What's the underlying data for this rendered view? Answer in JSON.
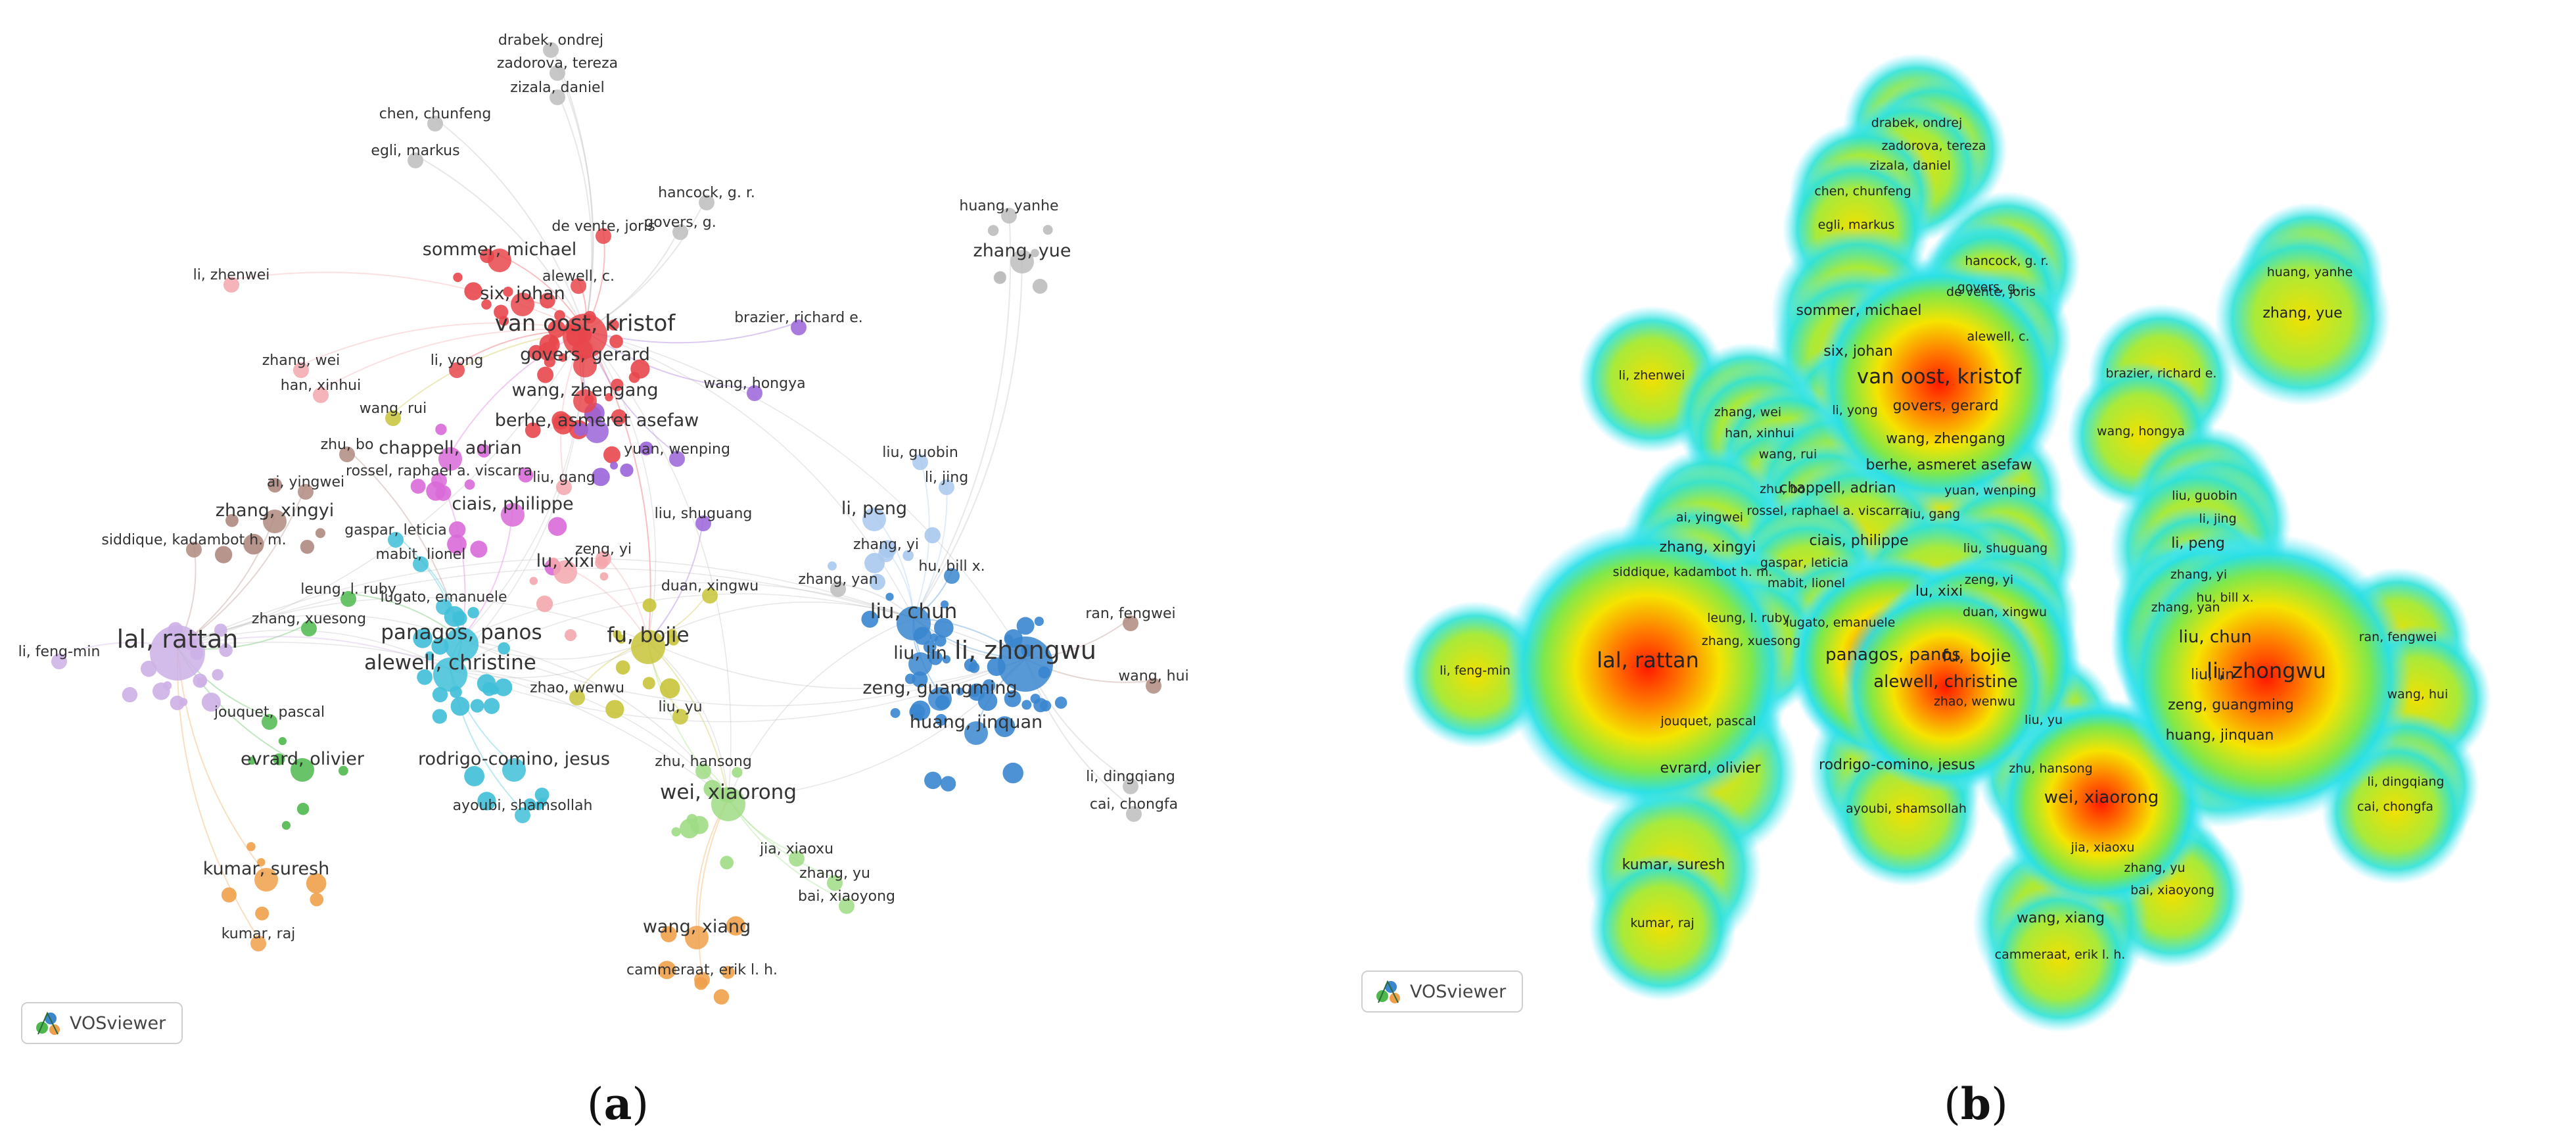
{
  "panels": {
    "a": {
      "caption_open": "(",
      "caption_letter": "a",
      "caption_close": ")"
    },
    "b": {
      "caption_open": "(",
      "caption_letter": "b",
      "caption_close": ")"
    }
  },
  "badge": {
    "label": "VOSviewer"
  },
  "colors": {
    "red": "#e8474c",
    "pink": "#f3a7ad",
    "blue": "#3a86cf",
    "lightblue": "#a9c8ee",
    "cyan": "#3fbfd8",
    "green": "#4fb84d",
    "lightgreen": "#9fdc85",
    "olive": "#c8c43a",
    "purple": "#9b64d9",
    "magenta": "#d96ad8",
    "lavender": "#cdb0e6",
    "orange": "#f0a04a",
    "brown": "#b08a80",
    "gray": "#bdbdbd",
    "yellowgreen": "#c9d863"
  },
  "nodes": [
    {
      "label": "drabek, ondrej",
      "c": "gray",
      "s": 1
    },
    {
      "label": "zadorova, tereza",
      "c": "gray",
      "s": 1
    },
    {
      "label": "zizala, daniel",
      "c": "gray",
      "s": 1
    },
    {
      "label": "chen, chunfeng",
      "c": "gray",
      "s": 1
    },
    {
      "label": "egli, markus",
      "c": "gray",
      "s": 1
    },
    {
      "label": "hancock, g. r.",
      "c": "gray",
      "s": 1
    },
    {
      "label": "govers, g.",
      "c": "gray",
      "s": 1
    },
    {
      "label": "de vente, joris",
      "c": "red",
      "s": 1
    },
    {
      "label": "sommer, michael",
      "c": "red",
      "s": 2
    },
    {
      "label": "alewell, c.",
      "c": "red",
      "s": 1
    },
    {
      "label": "six, johan",
      "c": "red",
      "s": 2
    },
    {
      "label": "van oost, kristof",
      "c": "red",
      "s": 4
    },
    {
      "label": "li, yong",
      "c": "red",
      "s": 1
    },
    {
      "label": "govers, gerard",
      "c": "red",
      "s": 2
    },
    {
      "label": "wang, zhengang",
      "c": "red",
      "s": 2
    },
    {
      "label": "huang, yanhe",
      "c": "gray",
      "s": 1
    },
    {
      "label": "zhang, yue",
      "c": "gray",
      "s": 2
    },
    {
      "label": "li, zhenwei",
      "c": "pink",
      "s": 1
    },
    {
      "label": "zhang, wei",
      "c": "pink",
      "s": 1
    },
    {
      "label": "han, xinhui",
      "c": "pink",
      "s": 1
    },
    {
      "label": "brazier, richard e.",
      "c": "purple",
      "s": 1
    },
    {
      "label": "wang, hongya",
      "c": "purple",
      "s": 1
    },
    {
      "label": "wang, rui",
      "c": "olive",
      "s": 1
    },
    {
      "label": "berhe, asmeret asefaw",
      "c": "purple",
      "s": 2
    },
    {
      "label": "yuan, wenping",
      "c": "purple",
      "s": 1
    },
    {
      "label": "zhu, bo",
      "c": "brown",
      "s": 1
    },
    {
      "label": "chappell, adrian",
      "c": "magenta",
      "s": 2
    },
    {
      "label": "rossel, raphael a. viscarra",
      "c": "magenta",
      "s": 1
    },
    {
      "label": "liu, gang",
      "c": "pink",
      "s": 1
    },
    {
      "label": "ai, yingwei",
      "c": "brown",
      "s": 1
    },
    {
      "label": "ciais, philippe",
      "c": "magenta",
      "s": 2
    },
    {
      "label": "zhang, xingyi",
      "c": "brown",
      "s": 2
    },
    {
      "label": "gaspar, leticia",
      "c": "cyan",
      "s": 1
    },
    {
      "label": "liu, shuguang",
      "c": "purple",
      "s": 1
    },
    {
      "label": "siddique, kadambot h. m.",
      "c": "brown",
      "s": 1
    },
    {
      "label": "mabit, lionel",
      "c": "cyan",
      "s": 1
    },
    {
      "label": "zeng, yi",
      "c": "pink",
      "s": 1
    },
    {
      "label": "lu, xixi",
      "c": "pink",
      "s": 2
    },
    {
      "label": "duan, xingwu",
      "c": "olive",
      "s": 1
    },
    {
      "label": "leung, l. ruby",
      "c": "green",
      "s": 1
    },
    {
      "label": "lugato, emanuele",
      "c": "cyan",
      "s": 1
    },
    {
      "label": "zhang, xuesong",
      "c": "green",
      "s": 1
    },
    {
      "label": "lal, rattan",
      "c": "lavender",
      "s": 5
    },
    {
      "label": "li, feng-min",
      "c": "lavender",
      "s": 1
    },
    {
      "label": "panagos, panos",
      "c": "cyan",
      "s": 3
    },
    {
      "label": "fu, bojie",
      "c": "olive",
      "s": 3
    },
    {
      "label": "alewell, christine",
      "c": "cyan",
      "s": 3
    },
    {
      "label": "zhao, wenwu",
      "c": "olive",
      "s": 1
    },
    {
      "label": "jouquet, pascal",
      "c": "green",
      "s": 1
    },
    {
      "label": "liu, yu",
      "c": "olive",
      "s": 1
    },
    {
      "label": "evrard, olivier",
      "c": "green",
      "s": 2
    },
    {
      "label": "rodrigo-comino, jesus",
      "c": "cyan",
      "s": 2
    },
    {
      "label": "zhu, hansong",
      "c": "lightgreen",
      "s": 1
    },
    {
      "label": "ayoubi, shamsollah",
      "c": "cyan",
      "s": 1
    },
    {
      "label": "wei, xiaorong",
      "c": "lightgreen",
      "s": 3
    },
    {
      "label": "jia, xiaoxu",
      "c": "lightgreen",
      "s": 1
    },
    {
      "label": "zhang, yu",
      "c": "lightgreen",
      "s": 1
    },
    {
      "label": "bai, xiaoyong",
      "c": "lightgreen",
      "s": 1
    },
    {
      "label": "kumar, suresh",
      "c": "orange",
      "s": 2
    },
    {
      "label": "kumar, raj",
      "c": "orange",
      "s": 1
    },
    {
      "label": "wang, xiang",
      "c": "orange",
      "s": 2
    },
    {
      "label": "cammeraat, erik l. h.",
      "c": "orange",
      "s": 1
    },
    {
      "label": "liu, guobin",
      "c": "lightblue",
      "s": 1
    },
    {
      "label": "li, jing",
      "c": "lightblue",
      "s": 1
    },
    {
      "label": "li, peng",
      "c": "lightblue",
      "s": 2
    },
    {
      "label": "zhang, yi",
      "c": "lightblue",
      "s": 1
    },
    {
      "label": "zhang, yan",
      "c": "gray",
      "s": 1
    },
    {
      "label": "hu, bill x.",
      "c": "blue",
      "s": 1
    },
    {
      "label": "liu, chun",
      "c": "blue",
      "s": 3
    },
    {
      "label": "liu, lin",
      "c": "blue",
      "s": 2
    },
    {
      "label": "li, zhongwu",
      "c": "blue",
      "s": 5
    },
    {
      "label": "ran, fengwei",
      "c": "brown",
      "s": 1
    },
    {
      "label": "wang, hui",
      "c": "brown",
      "s": 1
    },
    {
      "label": "zeng, guangming",
      "c": "blue",
      "s": 2
    },
    {
      "label": "huang, jinquan",
      "c": "blue",
      "s": 2
    },
    {
      "label": "li, dingqiang",
      "c": "gray",
      "s": 1
    },
    {
      "label": "cai, chongfa",
      "c": "gray",
      "s": 1
    }
  ]
}
